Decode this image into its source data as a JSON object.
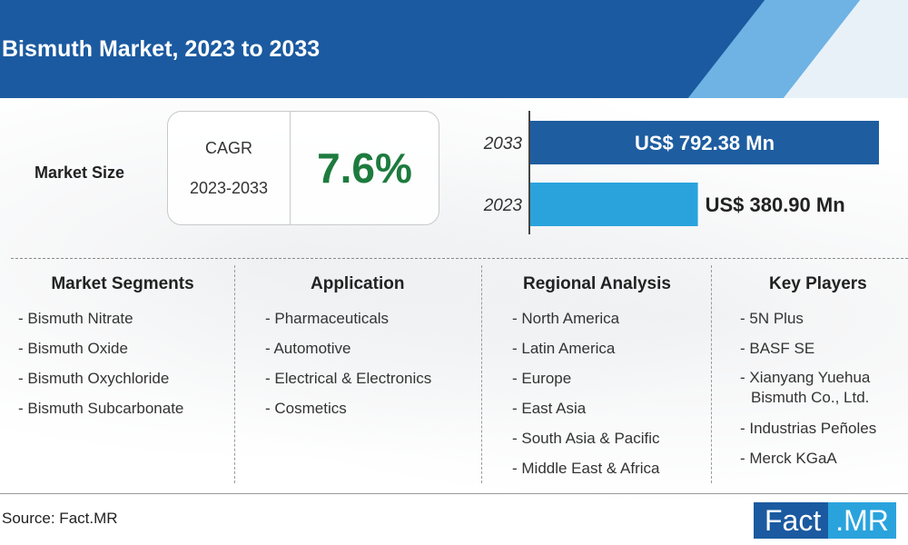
{
  "header": {
    "title": "Bismuth Market, 2023 to 2033"
  },
  "market_size": {
    "label": "Market Size",
    "cagr_label": "CAGR",
    "cagr_period": "2023-2033",
    "cagr_value": "7.6%"
  },
  "colors": {
    "bar_2033": "#1e5da0",
    "bar_2023": "#2aa3dd",
    "header": "#1b5aa0",
    "cagr": "#1d7b3e"
  },
  "chart_data": {
    "type": "bar",
    "orientation": "horizontal",
    "categories": [
      "2033",
      "2023"
    ],
    "values": [
      792.38,
      380.9
    ],
    "value_labels": [
      "US$ 792.38 Mn",
      "US$ 380.90 Mn"
    ],
    "unit": "US$ Mn"
  },
  "segments": {
    "market_segments": {
      "title": "Market Segments",
      "items": [
        "- Bismuth Nitrate",
        "- Bismuth Oxide",
        "- Bismuth Oxychloride",
        "- Bismuth Subcarbonate"
      ]
    },
    "application": {
      "title": "Application",
      "items": [
        "- Pharmaceuticals",
        "- Automotive",
        "- Electrical & Electronics",
        "- Cosmetics"
      ]
    },
    "regional": {
      "title": "Regional Analysis",
      "items": [
        "- North America",
        "- Latin America",
        "- Europe",
        "- East Asia",
        "- South Asia & Pacific",
        "- Middle East & Africa"
      ]
    },
    "key_players": {
      "title": "Key Players",
      "items": [
        "- 5N Plus",
        "- BASF SE",
        "- Xianyang Yuehua",
        "Bismuth Co., Ltd.",
        "- Industrias Peñoles",
        "- Merck KGaA"
      ]
    }
  },
  "footer": {
    "source": "Source: Fact.MR",
    "logo_left": "Fact",
    "logo_right": ".MR"
  }
}
